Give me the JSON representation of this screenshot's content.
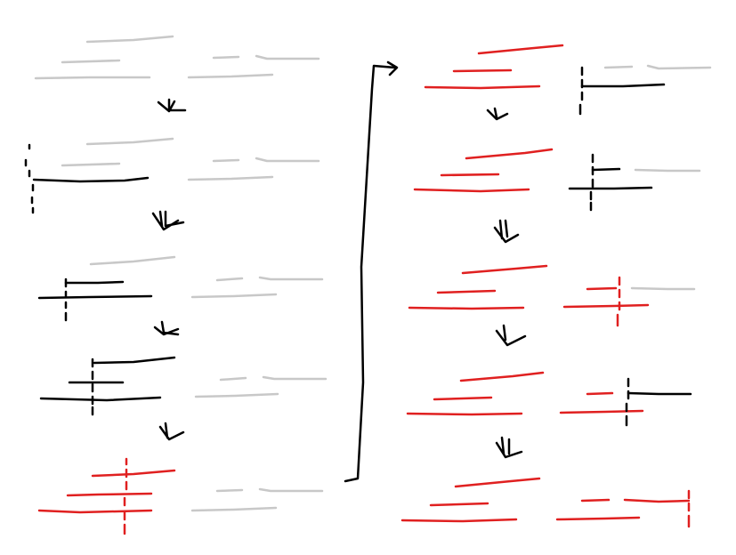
{
  "diagram": {
    "title": "",
    "colors": {
      "pending": "#c8c8c8",
      "active": "#000000",
      "done": "#e02020",
      "arrow": "#000000",
      "background": "#ffffff"
    },
    "left_column": {
      "steps": [
        {
          "state": "all-pending"
        },
        {
          "state": "scan-first-line"
        },
        {
          "state": "scan-second-line"
        },
        {
          "state": "scan-third-line"
        },
        {
          "state": "first-group-done"
        }
      ]
    },
    "right_column": {
      "steps": [
        {
          "state": "group-done-next-start"
        },
        {
          "state": "next-group-scan"
        },
        {
          "state": "next-group-partial"
        },
        {
          "state": "next-group-partial-2"
        },
        {
          "state": "all-done"
        }
      ]
    },
    "connector": {
      "kind": "bracket-arrow",
      "from": "left-bottom",
      "to": "right-top"
    }
  }
}
